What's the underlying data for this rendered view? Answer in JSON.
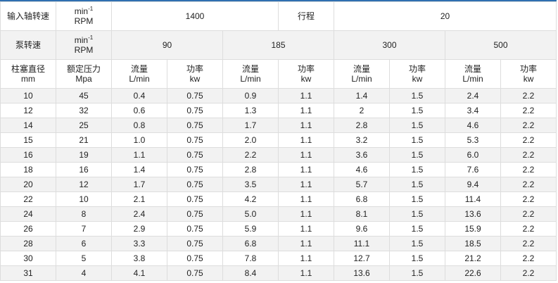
{
  "header": {
    "input_speed_label": "输入轴转速",
    "unit_top": "min",
    "unit_sup": "-1",
    "unit_bottom": "RPM",
    "input_speed": "1400",
    "stroke_label": "行程",
    "stroke": "20",
    "pump_speed_label": "泵转速",
    "pump_speeds": [
      "90",
      "185",
      "300",
      "500"
    ],
    "plunger_label": "柱塞直径",
    "plunger_unit": "mm",
    "pressure_label": "额定压力",
    "pressure_unit": "Mpa",
    "flow_label": "流量",
    "flow_unit": "L/min",
    "power_label": "功率",
    "power_unit": "kw"
  },
  "rows": [
    [
      "10",
      "45",
      "0.4",
      "0.75",
      "0.9",
      "1.1",
      "1.4",
      "1.5",
      "2.4",
      "2.2"
    ],
    [
      "12",
      "32",
      "0.6",
      "0.75",
      "1.3",
      "1.1",
      "2",
      "1.5",
      "3.4",
      "2.2"
    ],
    [
      "14",
      "25",
      "0.8",
      "0.75",
      "1.7",
      "1.1",
      "2.8",
      "1.5",
      "4.6",
      "2.2"
    ],
    [
      "15",
      "21",
      "1.0",
      "0.75",
      "2.0",
      "1.1",
      "3.2",
      "1.5",
      "5.3",
      "2.2"
    ],
    [
      "16",
      "19",
      "1.1",
      "0.75",
      "2.2",
      "1.1",
      "3.6",
      "1.5",
      "6.0",
      "2.2"
    ],
    [
      "18",
      "16",
      "1.4",
      "0.75",
      "2.8",
      "1.1",
      "4.6",
      "1.5",
      "7.6",
      "2.2"
    ],
    [
      "20",
      "12",
      "1.7",
      "0.75",
      "3.5",
      "1.1",
      "5.7",
      "1.5",
      "9.4",
      "2.2"
    ],
    [
      "22",
      "10",
      "2.1",
      "0.75",
      "4.2",
      "1.1",
      "6.8",
      "1.5",
      "11.4",
      "2.2"
    ],
    [
      "24",
      "8",
      "2.4",
      "0.75",
      "5.0",
      "1.1",
      "8.1",
      "1.5",
      "13.6",
      "2.2"
    ],
    [
      "26",
      "7",
      "2.9",
      "0.75",
      "5.9",
      "1.1",
      "9.6",
      "1.5",
      "15.9",
      "2.2"
    ],
    [
      "28",
      "6",
      "3.3",
      "0.75",
      "6.8",
      "1.1",
      "11.1",
      "1.5",
      "18.5",
      "2.2"
    ],
    [
      "30",
      "5",
      "3.8",
      "0.75",
      "7.8",
      "1.1",
      "12.7",
      "1.5",
      "21.2",
      "2.2"
    ],
    [
      "31",
      "4",
      "4.1",
      "0.75",
      "8.4",
      "1.1",
      "13.6",
      "1.5",
      "22.6",
      "2.2"
    ]
  ]
}
